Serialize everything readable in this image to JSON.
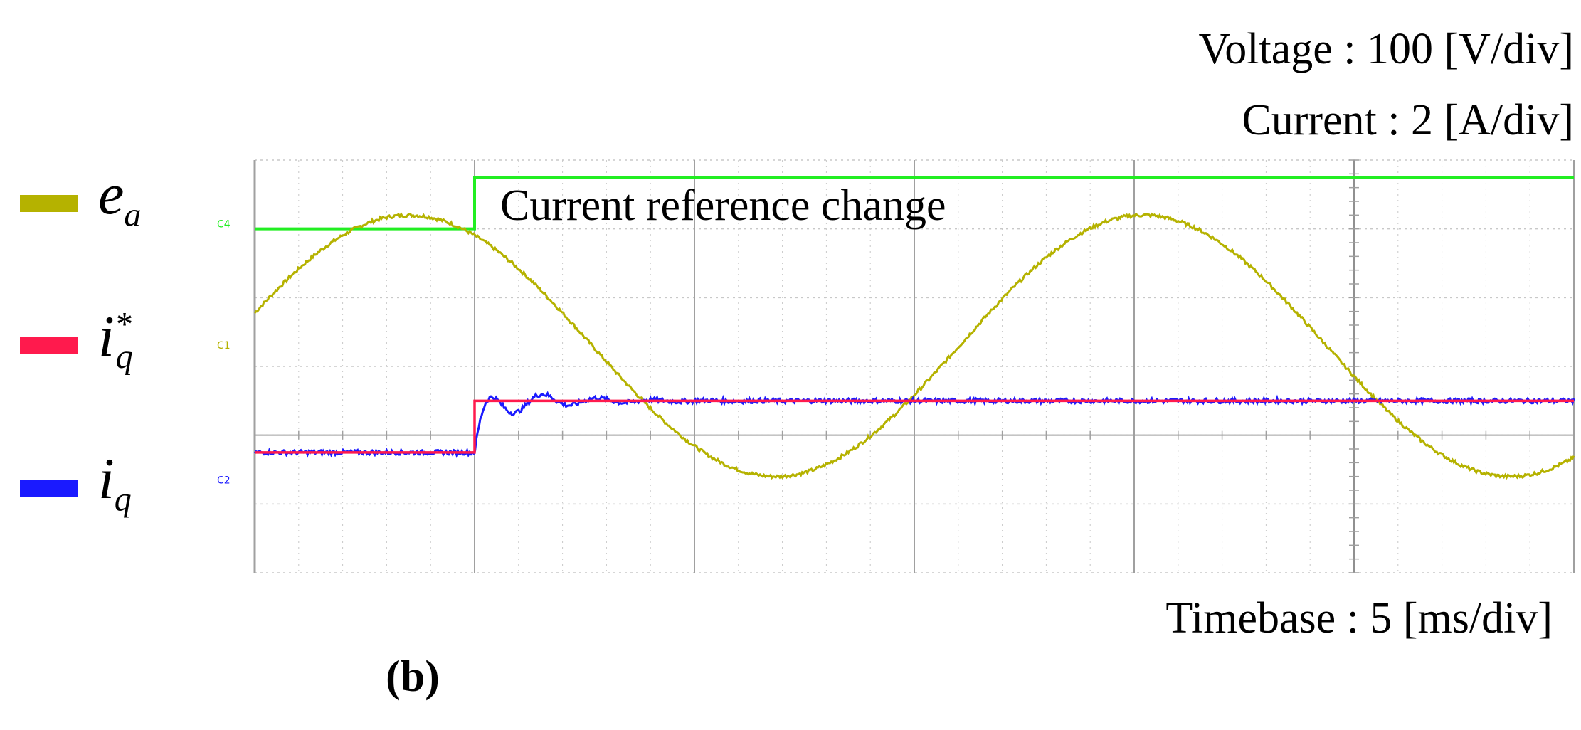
{
  "scales": {
    "voltage": "Voltage : 100 [V/div]",
    "current": "Current : 2 [A/div]",
    "timebase": "Timebase : 5 [ms/div]"
  },
  "panel_label": "(b)",
  "annotation": "Current reference change",
  "channel_markers": [
    "C4",
    "C1",
    "C2"
  ],
  "colors": {
    "ea": "#b5b200",
    "iq_ref": "#ff1a4d",
    "iq": "#1a1aff",
    "step": "#22ee22",
    "grid": "#c8c8c8",
    "axis": "#a0a0a0"
  },
  "chart_data": {
    "type": "line",
    "xlabel": "",
    "ylabel": "",
    "x_unit": "ms",
    "ms_per_div": 5,
    "x_divisions": 6,
    "xlim": [
      0,
      30
    ],
    "ylim_div": [
      -2,
      4
    ],
    "grid": true,
    "legend": "left",
    "step_time_ms": 5,
    "series": [
      {
        "name": "e_a",
        "legend_symbol": "e",
        "legend_sub": "a",
        "legend_sup": "",
        "kind": "sine",
        "amplitude_div": 1.9,
        "offset_div": 1.3,
        "peak_time_ms": 3.5,
        "period_ms": 16.7
      },
      {
        "name": "i_q*",
        "legend_symbol": "i",
        "legend_sub": "q",
        "legend_sup": "*",
        "kind": "step",
        "before_div": -0.25,
        "after_div": 0.5
      },
      {
        "name": "i_q",
        "legend_symbol": "i",
        "legend_sub": "q",
        "legend_sup": "",
        "kind": "step_response",
        "before_div": -0.25,
        "after_div": 0.5,
        "overshoot_div": 0.3,
        "oscillation_period_ms": 1.25,
        "decay_ms": 1.4
      }
    ]
  }
}
